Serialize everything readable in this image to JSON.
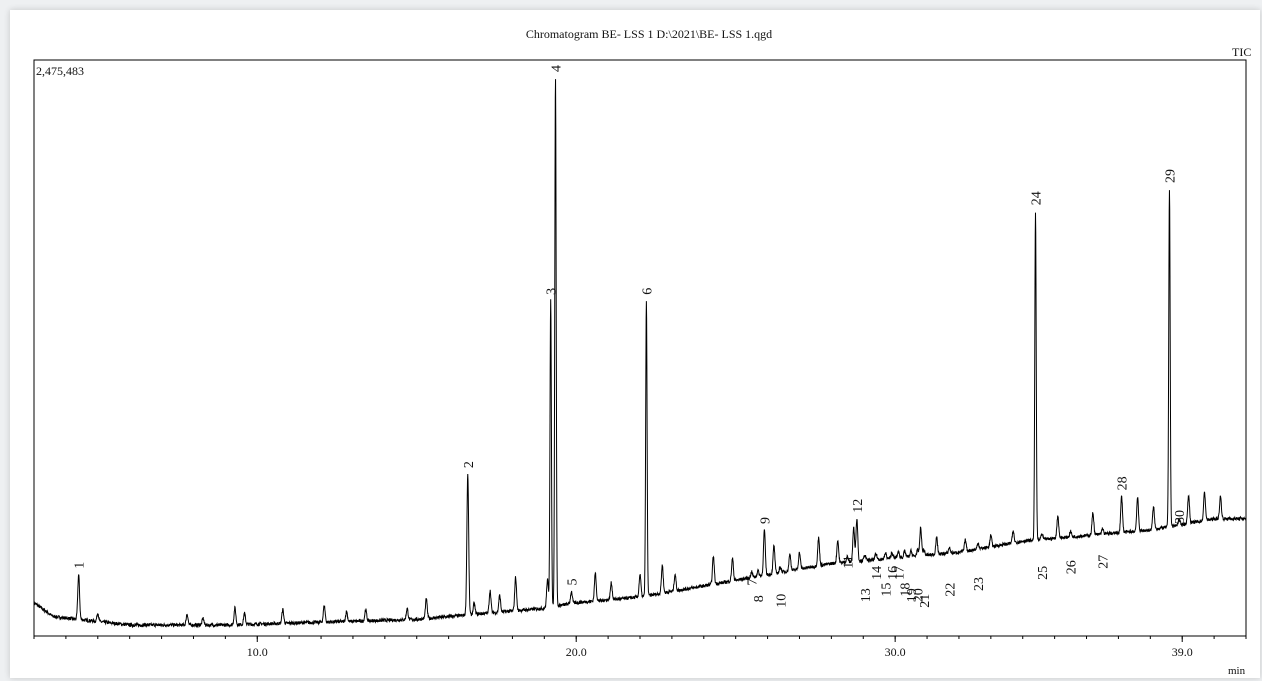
{
  "chart_data": {
    "type": "line",
    "title": "Chromatogram BE- LSS 1 D:\\2021\\BE- LSS 1.qgd",
    "trace_label": "TIC",
    "max_intensity_label": "2,475,483",
    "xlabel": "min",
    "xlim": [
      3.0,
      41.0
    ],
    "ylim": [
      0,
      1.0
    ],
    "x_ticks": [
      {
        "value": 10.0,
        "label": "10.0"
      },
      {
        "value": 20.0,
        "label": "20.0"
      },
      {
        "value": 30.0,
        "label": "30.0"
      },
      {
        "value": 39.0,
        "label": "39.0"
      }
    ],
    "baseline": [
      [
        3.0,
        0.04
      ],
      [
        3.6,
        0.015
      ],
      [
        6.0,
        0.0
      ],
      [
        9.0,
        0.0
      ],
      [
        12.0,
        0.005
      ],
      [
        15.0,
        0.01
      ],
      [
        17.0,
        0.02
      ],
      [
        19.0,
        0.03
      ],
      [
        20.0,
        0.04
      ],
      [
        22.0,
        0.05
      ],
      [
        24.0,
        0.07
      ],
      [
        26.0,
        0.09
      ],
      [
        28.0,
        0.11
      ],
      [
        30.0,
        0.12
      ],
      [
        32.0,
        0.13
      ],
      [
        34.0,
        0.15
      ],
      [
        36.0,
        0.16
      ],
      [
        38.0,
        0.17
      ],
      [
        40.0,
        0.19
      ],
      [
        41.0,
        0.19
      ]
    ],
    "minor_peaks": [
      [
        5.0,
        0.015
      ],
      [
        7.8,
        0.02
      ],
      [
        8.3,
        0.012
      ],
      [
        9.3,
        0.03
      ],
      [
        9.6,
        0.02
      ],
      [
        10.8,
        0.025
      ],
      [
        12.1,
        0.03
      ],
      [
        12.8,
        0.018
      ],
      [
        13.4,
        0.02
      ],
      [
        14.7,
        0.02
      ],
      [
        15.3,
        0.035
      ],
      [
        16.8,
        0.02
      ],
      [
        17.3,
        0.04
      ],
      [
        17.6,
        0.03
      ],
      [
        18.1,
        0.06
      ],
      [
        19.1,
        0.05
      ],
      [
        20.6,
        0.05
      ],
      [
        21.1,
        0.03
      ],
      [
        22.0,
        0.04
      ],
      [
        22.7,
        0.05
      ],
      [
        23.1,
        0.03
      ],
      [
        24.3,
        0.05
      ],
      [
        24.9,
        0.04
      ],
      [
        26.2,
        0.05
      ],
      [
        26.7,
        0.03
      ],
      [
        27.0,
        0.03
      ],
      [
        27.6,
        0.05
      ],
      [
        28.2,
        0.04
      ],
      [
        28.7,
        0.06
      ],
      [
        30.8,
        0.05
      ],
      [
        31.3,
        0.03
      ],
      [
        32.2,
        0.02
      ],
      [
        33.0,
        0.02
      ],
      [
        33.7,
        0.02
      ],
      [
        35.1,
        0.04
      ],
      [
        36.2,
        0.04
      ],
      [
        37.6,
        0.06
      ],
      [
        38.1,
        0.04
      ],
      [
        39.2,
        0.05
      ],
      [
        39.7,
        0.05
      ],
      [
        40.2,
        0.04
      ]
    ],
    "peaks": [
      {
        "label": "1",
        "rt": 4.4,
        "height": 0.09
      },
      {
        "label": "2",
        "rt": 16.6,
        "height": 0.27
      },
      {
        "label": "3",
        "rt": 19.2,
        "height": 0.58
      },
      {
        "label": "4",
        "rt": 19.35,
        "height": 0.98
      },
      {
        "label": "5",
        "rt": 19.85,
        "height": 0.06
      },
      {
        "label": "6",
        "rt": 22.2,
        "height": 0.58
      },
      {
        "label": "7",
        "rt": 25.5,
        "height": 0.06
      },
      {
        "label": "8",
        "rt": 25.7,
        "height": 0.03
      },
      {
        "label": "9",
        "rt": 25.9,
        "height": 0.17
      },
      {
        "label": "10",
        "rt": 26.4,
        "height": 0.02
      },
      {
        "label": "11",
        "rt": 28.5,
        "height": 0.09
      },
      {
        "label": "12",
        "rt": 28.8,
        "height": 0.19
      },
      {
        "label": "13",
        "rt": 29.05,
        "height": 0.03
      },
      {
        "label": "14",
        "rt": 29.4,
        "height": 0.07
      },
      {
        "label": "15",
        "rt": 29.7,
        "height": 0.04
      },
      {
        "label": "16",
        "rt": 29.9,
        "height": 0.07
      },
      {
        "label": "17",
        "rt": 30.1,
        "height": 0.07
      },
      {
        "label": "18",
        "rt": 30.3,
        "height": 0.04
      },
      {
        "label": "19",
        "rt": 30.5,
        "height": 0.03
      },
      {
        "label": "20",
        "rt": 30.7,
        "height": 0.03
      },
      {
        "label": "21",
        "rt": 30.9,
        "height": 0.02
      },
      {
        "label": "22",
        "rt": 31.7,
        "height": 0.04
      },
      {
        "label": "23",
        "rt": 32.6,
        "height": 0.05
      },
      {
        "label": "24",
        "rt": 34.4,
        "height": 0.74
      },
      {
        "label": "25",
        "rt": 34.6,
        "height": 0.07
      },
      {
        "label": "26",
        "rt": 35.5,
        "height": 0.08
      },
      {
        "label": "27",
        "rt": 36.5,
        "height": 0.09
      },
      {
        "label": "28",
        "rt": 37.1,
        "height": 0.23
      },
      {
        "label": "29",
        "rt": 38.6,
        "height": 0.78
      },
      {
        "label": "30",
        "rt": 38.9,
        "height": 0.17
      }
    ]
  }
}
